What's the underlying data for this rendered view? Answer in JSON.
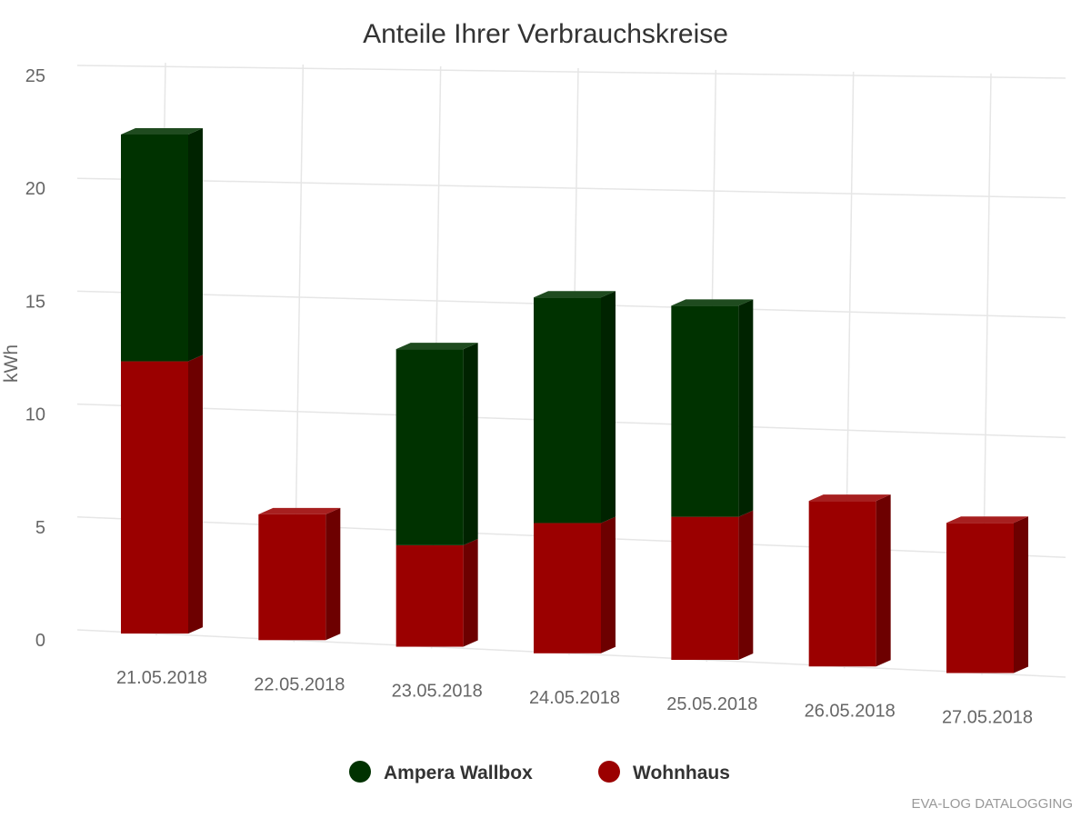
{
  "chart_data": {
    "type": "bar",
    "stacked": true,
    "three_d": true,
    "title": "Anteile Ihrer Verbrauchskreise",
    "ylabel": "kWh",
    "ylim": [
      0,
      25
    ],
    "yticks": [
      0,
      5,
      10,
      15,
      20,
      25
    ],
    "categories": [
      "21.05.2018",
      "22.05.2018",
      "23.05.2018",
      "24.05.2018",
      "25.05.2018",
      "26.05.2018",
      "27.05.2018"
    ],
    "series": [
      {
        "name": "Wohnhaus",
        "color": "#9b0000",
        "values": [
          12.0,
          5.5,
          4.4,
          5.6,
          6.1,
          7.0,
          6.3
        ]
      },
      {
        "name": "Ampera Wallbox",
        "color": "#003200",
        "values": [
          10.0,
          0.0,
          8.5,
          9.7,
          9.0,
          0.0,
          0.0
        ]
      }
    ],
    "legend": {
      "position": "bottom-center",
      "items": [
        {
          "name": "Ampera Wallbox",
          "color": "#003200"
        },
        {
          "name": "Wohnhaus",
          "color": "#9b0000"
        }
      ]
    },
    "grid": true,
    "credits": "EVA-LOG DATALOGGING"
  }
}
